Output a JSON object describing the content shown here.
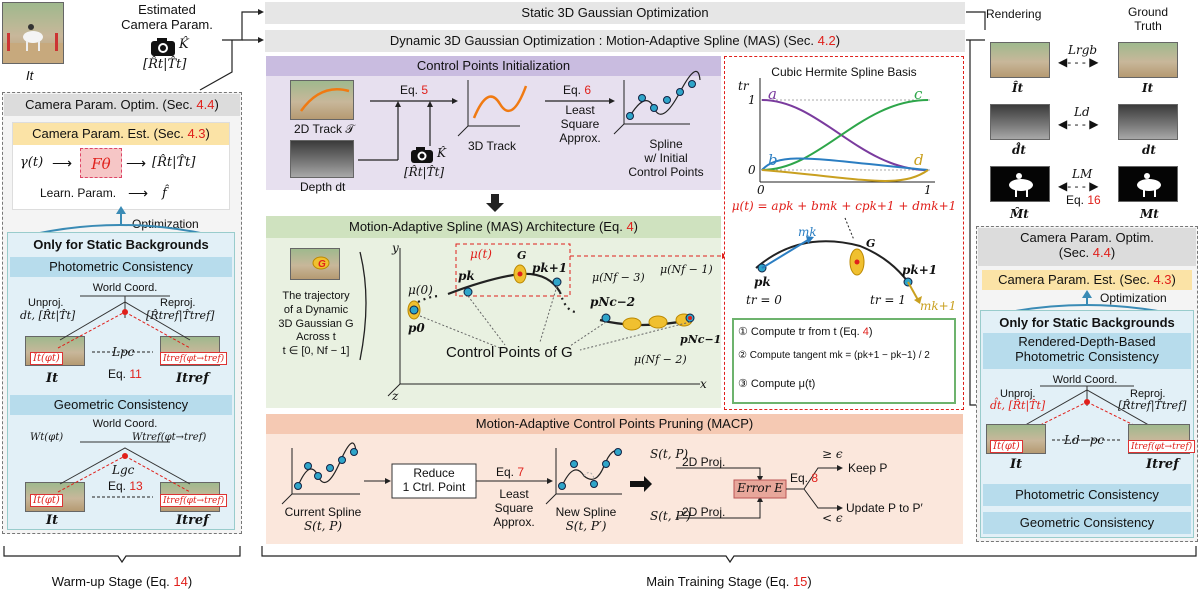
{
  "top": {
    "estimated_label_1": "Estimated",
    "estimated_label_2": "Camera Param.",
    "cam_k": "K̂",
    "cam_rt": "[R̂t|T̂t]",
    "it_label": "It",
    "static_bar": "Static 3D Gaussian Optimization",
    "dynamic_bar_pre": "Dynamic 3D Gaussian Optimization : Motion-Adaptive Spline (MAS) (Sec. ",
    "dynamic_bar_ref": "4.2",
    "dynamic_bar_post": ")"
  },
  "left": {
    "title_pre": "Camera Param. Optim. (Sec. ",
    "title_ref": "4.4",
    "title_post": ")",
    "est_pre": "Camera Param. Est. (Sec. ",
    "est_ref": "4.3",
    "est_post": ")",
    "gamma": "γ(t)",
    "ftheta": "Fθ",
    "rt_out": "[R̂t|T̂t]",
    "learn": "Learn. Param.",
    "fhat": "f̂",
    "optimization": "Optimization",
    "static_only": "Only for Static Backgrounds",
    "photometric": "Photometric Consistency",
    "world": "World Coord.",
    "unproj": "Unproj.",
    "unproj_val": "dt, [R̂t|T̂t]",
    "reproj": "Reproj.",
    "reproj_val": "[R̂tref|T̂tref]",
    "img1_label": "It(φt)",
    "img2_label": "Itref(φt→tref)",
    "l_pc": "Lpc",
    "eq11_pre": "Eq. ",
    "eq11": "11",
    "it": "It",
    "itref": "Itref",
    "geometric": "Geometric Consistency",
    "world2": "World Coord.",
    "wt": "Wt(φt)",
    "wtref": "Wtref(φt→tref)",
    "l_gc": "Lgc",
    "eq13_pre": "Eq. ",
    "eq13": "13",
    "img3_label": "It(φt)",
    "img4_label": "Itref(φt→tref)",
    "it2": "It",
    "itref2": "Itref"
  },
  "cpi": {
    "title": "Control Points Initialization",
    "track2d": "2D Track 𝒯",
    "depth": "Depth dt",
    "eq5_pre": "Eq. ",
    "eq5": "5",
    "track3d": "3D Track",
    "eq6_pre": "Eq. ",
    "eq6": "6",
    "lsq1": "Least",
    "lsq2": "Square",
    "lsq3": "Approx.",
    "spline1": "Spline",
    "spline2": "w/ Initial",
    "spline3": "Control Points",
    "cam_k": "K̂",
    "cam_rt": "[R̂t|T̂t]"
  },
  "mas": {
    "title_pre": "Motion-Adaptive Spline (MAS) Architecture (Eq. ",
    "title_ref": "4",
    "title_post": ")",
    "desc1": "The trajectory",
    "desc2": "of a Dynamic",
    "desc3": "3D Gaussian G",
    "desc4": "Across t",
    "desc5": "t ∈ [0, Nf − 1]",
    "y": "y",
    "x": "x",
    "z": "z",
    "mu0": "μ(0)",
    "mut": "μ(t)",
    "g": "G",
    "p0": "p0",
    "pk": "pk",
    "pk1": "pk+1",
    "pnc2": "pNc−2",
    "pnc1": "pNc−1",
    "munf3": "μ(Nf − 3)",
    "munf1": "μ(Nf − 1)",
    "munf2": "μ(Nf − 2)",
    "control_points": "Control Points of G"
  },
  "macp": {
    "title": "Motion-Adaptive Control Points Pruning (MACP)",
    "current1": "Current Spline",
    "current2": "S(t, P)",
    "reduce1": "Reduce",
    "reduce2": "1 Ctrl. Point",
    "eq7_pre": "Eq. ",
    "eq7": "7",
    "lsq1": "Least",
    "lsq2": "Square",
    "lsq3": "Approx.",
    "new1": "New Spline",
    "new2": "S(t, P′)",
    "stp": "S(t, P)",
    "stpp": "S(t, P′)",
    "proj1": "2D Proj.",
    "proj2": "2D Proj.",
    "error": "Error E",
    "eq8_pre": "Eq. ",
    "eq8": "8",
    "geq": "≥ ϵ",
    "lt": "< ϵ",
    "keep": "Keep P",
    "update": "Update P to P′"
  },
  "spline_basis": {
    "title": "Cubic Hermite Spline Basis",
    "tr": "tr",
    "a": "a",
    "b": "b",
    "c": "c",
    "d": "d",
    "one": "1",
    "zero": "0",
    "x0": "0",
    "x1": "1",
    "formula": "μ(t) = apk + bmk + cpk+1 + dmk+1",
    "mk": "mk",
    "g": "G",
    "pk": "pk",
    "pk1": "pk+1",
    "tr0": "tr = 0",
    "tr1": "tr = 1",
    "mk1": "mk+1",
    "step1_pre": "① Compute tr from t (Eq. ",
    "step1_ref": "4",
    "step1_post": ")",
    "step2": "② Compute tangent mk = (pk+1 − pk−1) / 2",
    "step3": "③ Compute μ(t)"
  },
  "right": {
    "rendering": "Rendering",
    "ground1": "Ground",
    "ground2": "Truth",
    "l_rgb": "Lrgb",
    "i_hat": "Ît",
    "i_t": "It",
    "l_d": "Ld",
    "d_hat": "d̂t",
    "d_t": "dt",
    "l_m": "LM",
    "eq16_pre": "Eq. ",
    "eq16": "16",
    "m_hat": "M̂t",
    "m_t": "Mt",
    "title1": "Camera Param. Optim.",
    "title2_pre": "(Sec. ",
    "title2_ref": "4.4",
    "title2_post": ")",
    "est_pre": "Camera Param. Est. (Sec. ",
    "est_ref": "4.3",
    "est_post": ")",
    "optimization": "Optimization",
    "static_only": "Only for Static Backgrounds",
    "rdb1": "Rendered-Depth-Based",
    "rdb2": "Photometric Consistency",
    "world": "World Coord.",
    "unproj": "Unproj.",
    "unproj_val": "d̂t, [R̂t|T̂t]",
    "reproj": "Reproj.",
    "reproj_val": "[R̂tref|T̂tref]",
    "img1_label": "It(φt)",
    "img2_label": "Itref(φt→tref)",
    "l_dpc": "Ld−pc",
    "it": "It",
    "itref": "Itref",
    "photometric": "Photometric Consistency",
    "geometric": "Geometric Consistency"
  },
  "bottom": {
    "warmup_pre": "Warm-up Stage (Eq. ",
    "warmup_ref": "14",
    "warmup_post": ")",
    "main_pre": "Main Training Stage (Eq. ",
    "main_ref": "15",
    "main_post": ")"
  }
}
